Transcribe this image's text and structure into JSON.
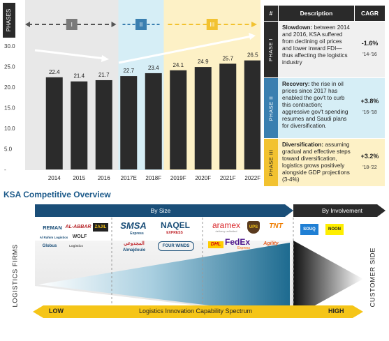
{
  "chart_data": {
    "type": "bar",
    "ylabel": "PHASES",
    "ylim": [
      0,
      30
    ],
    "yticks": [
      "30.0",
      "25.0",
      "20.0",
      "15.0",
      "10.0",
      "5.0",
      "-"
    ],
    "categories": [
      "2014",
      "2015",
      "2016",
      "2017E",
      "2018F",
      "2019F",
      "2020F",
      "2021F",
      "2022F"
    ],
    "values": [
      22.4,
      21.4,
      21.7,
      22.7,
      23.4,
      24.1,
      24.9,
      25.7,
      26.5
    ],
    "value_labels": [
      "22.4",
      "21.4",
      "21.7",
      "22.7",
      "23.4",
      "24.1",
      "24.9",
      "25.7",
      "26.5"
    ],
    "phase_labels": [
      "I",
      "II",
      "III"
    ]
  },
  "colors": {
    "bar": "#2b2b2b",
    "phase1_bg": "#e8e8e8",
    "phase2_bg": "#d6eef6",
    "phase3_bg": "#fdf1c6",
    "phase2_accent": "#3a7fb0",
    "phase3_accent": "#f2c230",
    "navy": "#1a4e78",
    "dark": "#2a2a2a",
    "yellow": "#f5c518"
  },
  "table": {
    "headers": [
      "#",
      "Description",
      "CAGR"
    ],
    "rows": [
      {
        "phase": "PHASE I",
        "desc_bold": "Slowdown:",
        "desc": " between 2014 and 2016, KSA suffered from declining oil prices and lower inward FDI—thus affecting the logistics industry",
        "cagr": "-1.6%",
        "period": "'14-'16"
      },
      {
        "phase": "PHASE II",
        "desc_bold": "Recovery:",
        "desc": " the rise in oil prices since 2017 has enabled the gov't to curb this contraction; aggressive gov't spending resumes and Saudi plans for diversification.",
        "cagr": "+3.8%",
        "period": "'16-'18"
      },
      {
        "phase": "PHASE III",
        "desc_bold": "Diversification:",
        "desc": " assuming gradual and effective steps toward diversification, logistics grows positively alongside GDP projections (3-4%)",
        "cagr": "+3.2%",
        "period": "'18-'22"
      }
    ]
  },
  "overview": {
    "title": "KSA Competitive Overview",
    "by_size": "By Size",
    "by_involvement": "By Involvement",
    "left_axis": "LOGISTICS FIRMS",
    "right_axis": "CUSTOMER SIDE",
    "spectrum_low": "LOW",
    "spectrum_label": "Logistics Innovation Capability Spectrum",
    "spectrum_high": "HIGH",
    "logos_group1": [
      "REMAN",
      "AL-ABBAR",
      "ZAJIL",
      "Al Rahim Logistics",
      "WOLF",
      "Globus",
      "Logistics"
    ],
    "logos_group2": [
      "SMSA",
      "Express",
      "NAQEL",
      "EXPRESS",
      "المجدوعي",
      "Almajdouie",
      "FOUR WINDS"
    ],
    "logos_group3": [
      "aramex",
      "delivery unlimited",
      "UPS",
      "TNT",
      "DHL",
      "FedEx",
      "Express",
      "Agility"
    ],
    "logos_group4": [
      "SOUQ",
      "NOON"
    ]
  }
}
